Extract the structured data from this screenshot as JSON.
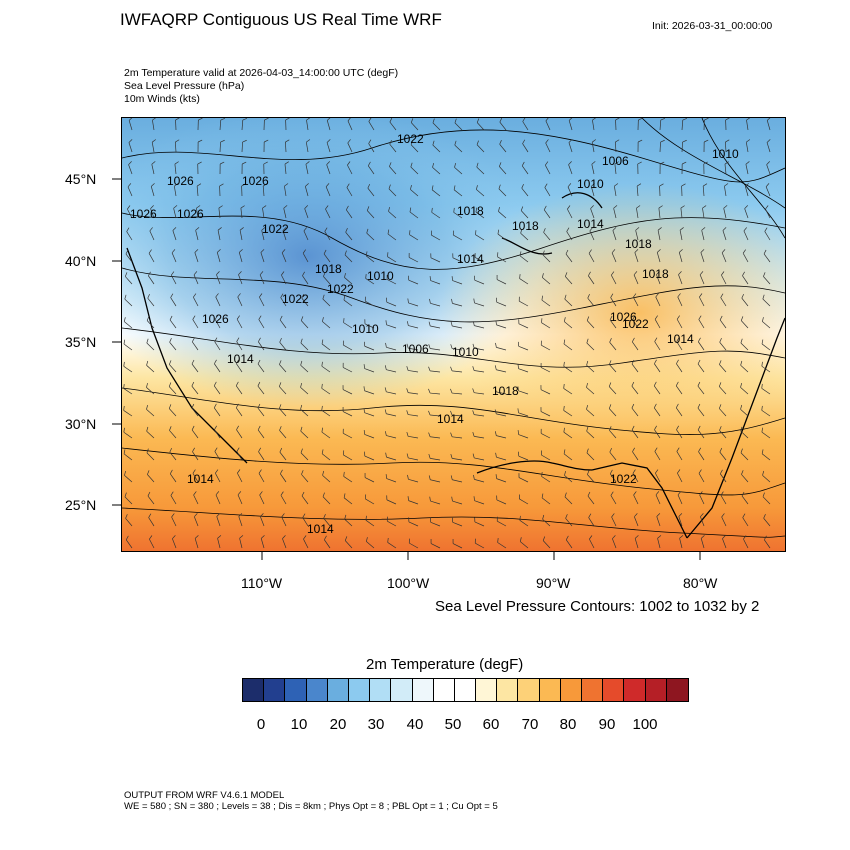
{
  "header": {
    "title": "IWFAQRP Contiguous US Real Time WRF",
    "init": "Init: 2026-03-31_00:00:00"
  },
  "fields": [
    "2m Temperature valid at 2026-04-03_14:00:00 UTC   (degF)",
    "Sea Level Pressure   (hPa)",
    "10m Winds   (kts)"
  ],
  "map": {
    "lat_labels": [
      "45°N",
      "40°N",
      "35°N",
      "30°N",
      "25°N"
    ],
    "lon_labels": [
      "110°W",
      "100°W",
      "90°W",
      "80°W"
    ],
    "isobar_labels": [
      "1022",
      "1006",
      "1026",
      "1026",
      "1026",
      "1026",
      "1022",
      "1018",
      "1018",
      "1018",
      "1010",
      "1014",
      "1014",
      "1018",
      "1010",
      "1022",
      "1026",
      "1018",
      "1014",
      "1026",
      "1022",
      "1022",
      "1014",
      "1006",
      "1010",
      "1018",
      "1014",
      "1022",
      "1014",
      "1014",
      "1010",
      "1010"
    ]
  },
  "contour_note": "Sea Level Pressure Contours: 1002 to 1032 by 2",
  "colorbar": {
    "title": "2m Temperature  (degF)",
    "colors": [
      "#1c2d6b",
      "#223f8f",
      "#2e62b5",
      "#4a86cc",
      "#6aaedf",
      "#8ccaef",
      "#b1def5",
      "#d2ecf8",
      "#eef7fb",
      "#ffffff",
      "#ffffff",
      "#fff6d6",
      "#fde6a3",
      "#fdd178",
      "#fbb953",
      "#f7993a",
      "#ef7330",
      "#e54b2b",
      "#cf2a2a",
      "#b51f26",
      "#8e1620"
    ],
    "ticks": [
      "0",
      "10",
      "20",
      "30",
      "40",
      "50",
      "60",
      "70",
      "80",
      "90",
      "100"
    ]
  },
  "footer": {
    "model": "OUTPUT FROM WRF V4.6.1 MODEL",
    "params": "WE = 580 ; SN = 380 ; Levels = 38 ; Dis = 8km ; Phys Opt = 8 ; PBL Opt = 1 ; Cu Opt = 5"
  }
}
